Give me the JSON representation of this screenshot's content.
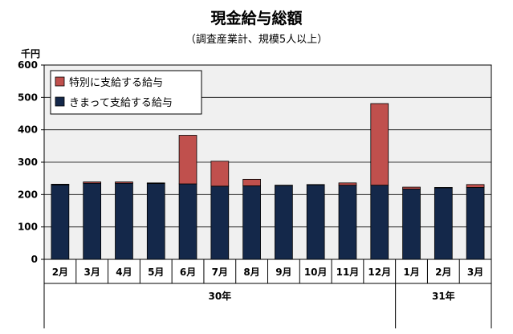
{
  "title": "現金給与総額",
  "subtitle": "（調査産業計、規模5人以上）",
  "chart_data": {
    "type": "bar",
    "stacked": true,
    "unit_label": "千円",
    "categories": [
      "2月",
      "3月",
      "4月",
      "5月",
      "6月",
      "7月",
      "8月",
      "9月",
      "10月",
      "11月",
      "12月",
      "1月",
      "2月",
      "3月"
    ],
    "year_groups": [
      {
        "label": "30年",
        "span": 11
      },
      {
        "label": "31年",
        "span": 3
      }
    ],
    "series": [
      {
        "name": "きまって支給する給与",
        "color": "#14284a",
        "values": [
          230,
          235,
          235,
          234,
          233,
          226,
          227,
          228,
          230,
          229,
          229,
          217,
          221,
          222
        ]
      },
      {
        "name": "特別に支給する給与",
        "color": "#c0504d",
        "values": [
          2,
          4,
          4,
          2,
          150,
          77,
          20,
          1,
          1,
          7,
          252,
          6,
          1,
          9
        ]
      }
    ],
    "ylim": [
      0,
      600
    ],
    "yticks": [
      0,
      100,
      200,
      300,
      400,
      500,
      600
    ],
    "grid": true,
    "legend_position": "top-left"
  }
}
